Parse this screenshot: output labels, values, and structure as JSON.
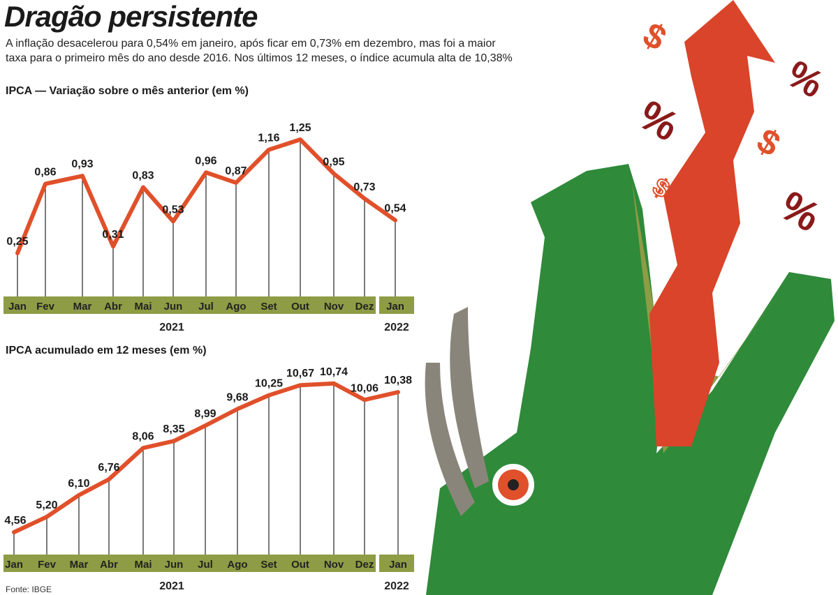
{
  "header": {
    "title": "Dragão persistente",
    "subtitle_line1": "A inflação desacelerou para 0,54% em janeiro, após ficar em 0,73% em dezembro, mas foi a maior",
    "subtitle_line2": "taxa para o primeiro mês do ano desde 2016. Nos últimos 12 meses, o índice acumula alta de 10,38%"
  },
  "source": "Fonte: IBGE",
  "colors": {
    "line": "#e0502a",
    "axis_band": "#8e9c45",
    "dragon": "#2f8a3a",
    "arrow": "#d9442a"
  },
  "chart_data": [
    {
      "type": "line",
      "title": "IPCA — Variação sobre o mês anterior (em %)",
      "categories": [
        "Jan",
        "Fev",
        "Mar",
        "Abr",
        "Mai",
        "Jun",
        "Jul",
        "Ago",
        "Set",
        "Out",
        "Nov",
        "Dez",
        "Jan"
      ],
      "years": [
        "2021",
        "2022"
      ],
      "values": [
        0.25,
        0.86,
        0.93,
        0.31,
        0.83,
        0.53,
        0.96,
        0.87,
        1.16,
        1.25,
        0.95,
        0.73,
        0.54
      ],
      "labels": [
        "0,25",
        "0,86",
        "0,93",
        "0,31",
        "0,83",
        "0,53",
        "0,96",
        "0,87",
        "1,16",
        "1,25",
        "0,95",
        "0,73",
        "0,54"
      ],
      "grid": false
    },
    {
      "type": "line",
      "title": "IPCA acumulado em 12 meses (em %)",
      "categories": [
        "Jan",
        "Fev",
        "Mar",
        "Abr",
        "Mai",
        "Jun",
        "Jul",
        "Ago",
        "Set",
        "Out",
        "Nov",
        "Dez",
        "Jan"
      ],
      "years": [
        "2021",
        "2022"
      ],
      "values": [
        4.56,
        5.2,
        6.1,
        6.76,
        8.06,
        8.35,
        8.99,
        9.68,
        10.25,
        10.67,
        10.74,
        10.06,
        10.38
      ],
      "labels": [
        "4,56",
        "5,20",
        "6,10",
        "6,76",
        "8,06",
        "8,35",
        "8,99",
        "9,68",
        "10,25",
        "10,67",
        "10,74",
        "10,06",
        "10,38"
      ],
      "grid": false
    }
  ]
}
